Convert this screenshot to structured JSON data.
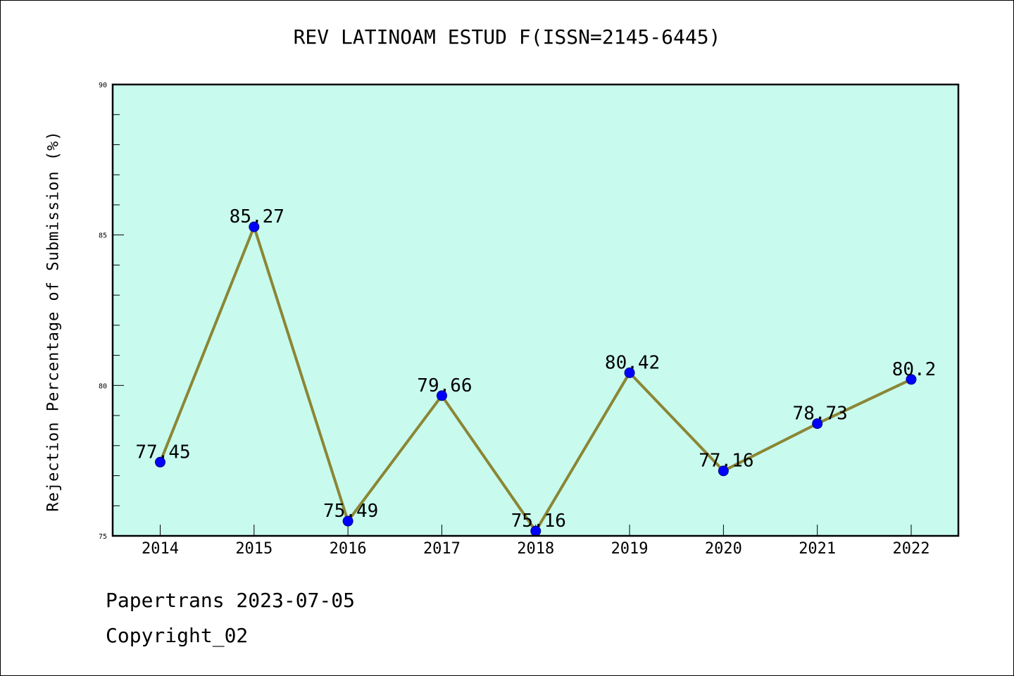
{
  "colors": {
    "plot_background": "#c8fbee",
    "line": "#8b8635",
    "marker": "#0000ff",
    "frame": "#000000"
  },
  "chart_data": {
    "type": "line",
    "title": "REV LATINOAM ESTUD F(ISSN=2145-6445)",
    "xlabel": "",
    "ylabel": "Rejection Percentage of Submission (%)",
    "categories": [
      "2014",
      "2015",
      "2016",
      "2017",
      "2018",
      "2019",
      "2020",
      "2021",
      "2022"
    ],
    "values": [
      77.45,
      85.27,
      75.49,
      79.66,
      75.16,
      80.42,
      77.16,
      78.73,
      80.2
    ],
    "data_labels": [
      "77.45",
      "85.27",
      "75.49",
      "79.66",
      "75.16",
      "80.42",
      "77.16",
      "78.73",
      "80.2"
    ],
    "ylim": [
      75,
      90
    ],
    "yticks": [
      75,
      80,
      85,
      90
    ],
    "ytick_labels": [
      "75",
      "80",
      "85",
      "90"
    ],
    "grid": false,
    "legend": "none"
  },
  "footer": {
    "line1": "Papertrans 2023-07-05",
    "line2": "Copyright_02"
  }
}
